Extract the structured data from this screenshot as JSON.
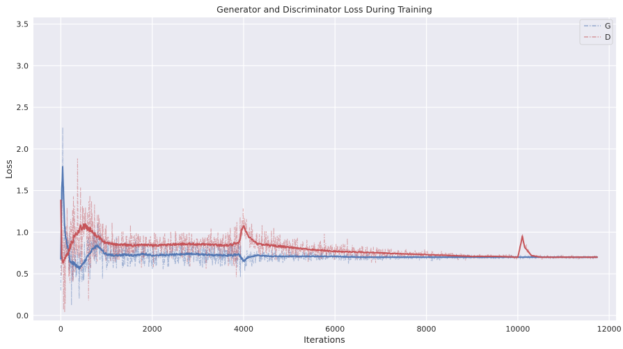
{
  "chart_data": {
    "type": "line",
    "title": "Generator and Discriminator Loss During Training",
    "xlabel": "Iterations",
    "ylabel": "Loss",
    "xlim": [
      -600,
      12150
    ],
    "ylim": [
      -0.06,
      3.58
    ],
    "xticks": [
      0,
      2000,
      4000,
      6000,
      8000,
      10000,
      12000
    ],
    "yticks": [
      0.0,
      0.5,
      1.0,
      1.5,
      2.0,
      2.5,
      3.0,
      3.5
    ],
    "grid": true,
    "legend_position": "top-right",
    "background_color": "#eaeaf2",
    "series": [
      {
        "name": "G",
        "color": "#4c72b0",
        "style": "dash-dot",
        "x": [
          0,
          20,
          40,
          60,
          80,
          100,
          130,
          160,
          200,
          300,
          400,
          500,
          600,
          700,
          800,
          900,
          1000,
          1200,
          1400,
          1600,
          1800,
          2000,
          2400,
          2800,
          3200,
          3600,
          3900,
          3950,
          4000,
          4100,
          4300,
          4600,
          5000,
          5500,
          6000,
          6500,
          7000,
          7500,
          8000,
          8500,
          9000,
          9500,
          10000,
          10500,
          11000,
          11500,
          11750
        ],
        "y": [
          0.65,
          1.55,
          1.74,
          1.45,
          1.1,
          0.95,
          0.88,
          0.8,
          0.65,
          0.62,
          0.57,
          0.63,
          0.72,
          0.8,
          0.84,
          0.78,
          0.73,
          0.72,
          0.73,
          0.72,
          0.74,
          0.72,
          0.73,
          0.74,
          0.73,
          0.72,
          0.73,
          0.69,
          0.65,
          0.7,
          0.72,
          0.71,
          0.71,
          0.71,
          0.71,
          0.7,
          0.7,
          0.7,
          0.7,
          0.7,
          0.7,
          0.7,
          0.7,
          0.7,
          0.7,
          0.7,
          0.7
        ],
        "noise": [
          2.4,
          2.2,
          1.7,
          1.2,
          0.9,
          0.6,
          0.55,
          0.55,
          0.6,
          0.55,
          0.5,
          0.45,
          0.4,
          0.4,
          0.4,
          0.35,
          0.35,
          0.3,
          0.3,
          0.28,
          0.28,
          0.28,
          0.26,
          0.28,
          0.26,
          0.26,
          0.3,
          0.4,
          0.3,
          0.2,
          0.16,
          0.14,
          0.12,
          0.1,
          0.09,
          0.08,
          0.06,
          0.05,
          0.05,
          0.04,
          0.04,
          0.03,
          0.03,
          0.03,
          0.02,
          0.02,
          0.02
        ]
      },
      {
        "name": "D",
        "color": "#c44e52",
        "style": "dash-dot",
        "x": [
          0,
          20,
          40,
          60,
          80,
          100,
          130,
          160,
          200,
          300,
          400,
          500,
          600,
          700,
          800,
          900,
          1000,
          1200,
          1400,
          1600,
          1800,
          2000,
          2400,
          2800,
          3200,
          3600,
          3900,
          3950,
          4000,
          4100,
          4300,
          4600,
          5000,
          5500,
          6000,
          6500,
          7000,
          7500,
          8000,
          8500,
          9000,
          9500,
          10000,
          10050,
          10100,
          10150,
          10300,
          10500,
          11000,
          11500,
          11750
        ],
        "y": [
          1.38,
          0.7,
          0.64,
          0.65,
          0.68,
          0.7,
          0.72,
          0.75,
          0.82,
          0.95,
          1.03,
          1.07,
          1.05,
          1.0,
          0.95,
          0.9,
          0.87,
          0.85,
          0.85,
          0.84,
          0.85,
          0.84,
          0.85,
          0.86,
          0.85,
          0.84,
          0.87,
          1.0,
          1.08,
          0.95,
          0.86,
          0.84,
          0.82,
          0.79,
          0.77,
          0.76,
          0.75,
          0.74,
          0.73,
          0.72,
          0.71,
          0.71,
          0.7,
          0.82,
          0.95,
          0.82,
          0.72,
          0.7,
          0.7,
          0.7,
          0.7
        ],
        "noise": [
          1.0,
          1.0,
          0.9,
          0.8,
          0.7,
          0.65,
          0.7,
          0.8,
          0.9,
          1.0,
          1.1,
          1.0,
          0.9,
          0.7,
          0.55,
          0.45,
          0.4,
          0.35,
          0.32,
          0.3,
          0.3,
          0.3,
          0.3,
          0.32,
          0.3,
          0.3,
          0.6,
          0.8,
          0.4,
          0.3,
          0.28,
          0.35,
          0.26,
          0.22,
          0.2,
          0.15,
          0.12,
          0.1,
          0.08,
          0.06,
          0.05,
          0.04,
          0.04,
          0.1,
          0.12,
          0.08,
          0.04,
          0.03,
          0.03,
          0.03,
          0.03
        ]
      }
    ]
  }
}
